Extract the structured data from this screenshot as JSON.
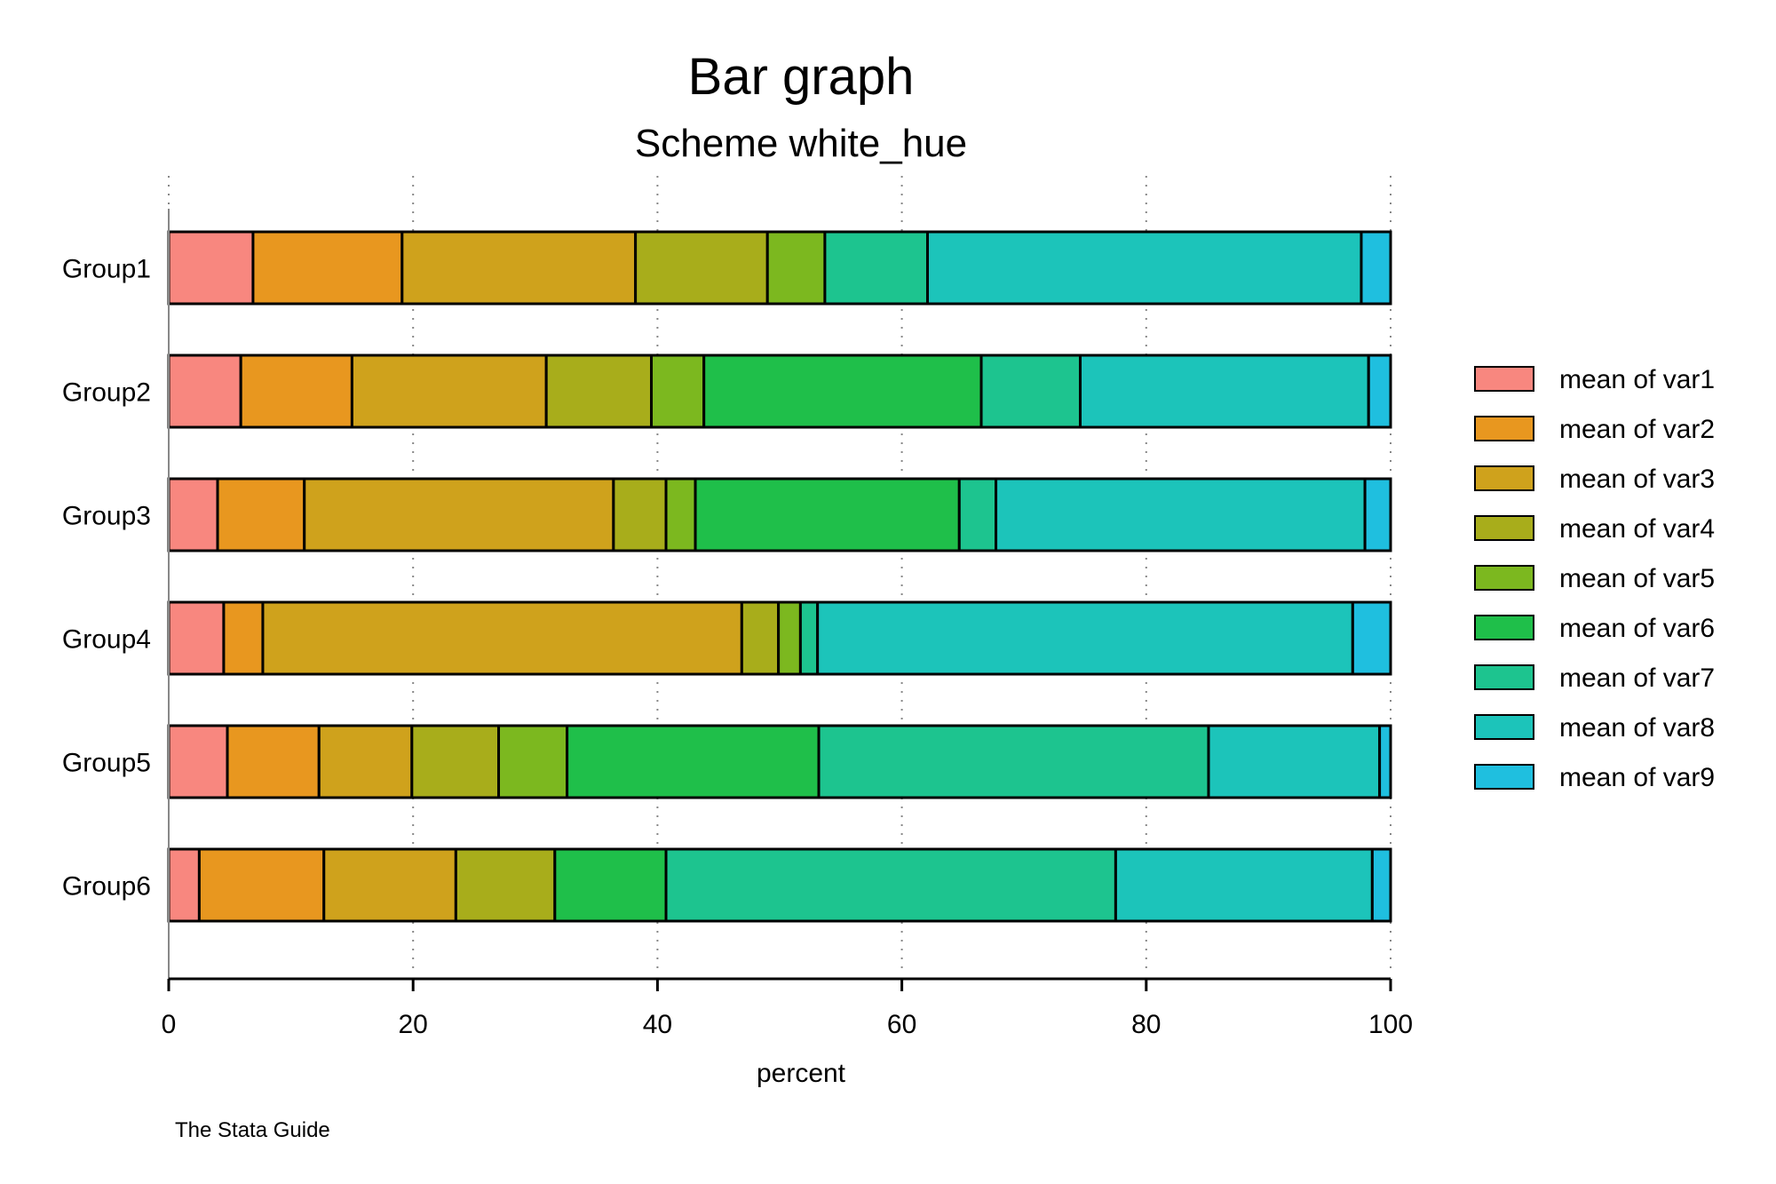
{
  "chart_data": {
    "type": "bar",
    "orientation": "horizontal",
    "stacked": true,
    "title": "Bar graph",
    "subtitle": "Scheme white_hue",
    "xlabel": "percent",
    "xlim": [
      0,
      100
    ],
    "xticks": [
      0,
      20,
      40,
      60,
      80,
      100
    ],
    "grid": true,
    "legend_position": "right",
    "note": "The Stata Guide",
    "categories": [
      "Group1",
      "Group2",
      "Group3",
      "Group4",
      "Group5",
      "Group6"
    ],
    "series": [
      {
        "name": "mean of var1",
        "color": "#F8877F",
        "values": [
          6.9,
          5.9,
          4.0,
          4.5,
          4.8,
          2.5
        ]
      },
      {
        "name": "mean of var2",
        "color": "#E8971F",
        "values": [
          12.2,
          9.1,
          7.1,
          3.2,
          7.5,
          10.2
        ]
      },
      {
        "name": "mean of var3",
        "color": "#CFA21C",
        "values": [
          19.1,
          15.9,
          25.3,
          39.2,
          7.6,
          10.8
        ]
      },
      {
        "name": "mean of var4",
        "color": "#A8AD1B",
        "values": [
          10.8,
          8.6,
          4.3,
          3.0,
          7.1,
          8.1
        ]
      },
      {
        "name": "mean of var5",
        "color": "#7CB81F",
        "values": [
          4.7,
          4.3,
          2.4,
          1.8,
          5.6,
          0.0
        ]
      },
      {
        "name": "mean of var6",
        "color": "#1FBF4A",
        "values": [
          0.0,
          22.7,
          21.6,
          0.0,
          20.6,
          9.1
        ]
      },
      {
        "name": "mean of var7",
        "color": "#1DC48F",
        "values": [
          8.4,
          8.1,
          3.0,
          1.4,
          31.9,
          36.8
        ]
      },
      {
        "name": "mean of var8",
        "color": "#1CC4BA",
        "values": [
          35.5,
          23.6,
          30.2,
          43.8,
          14.0,
          21.0
        ]
      },
      {
        "name": "mean of var9",
        "color": "#1FBFDF",
        "values": [
          2.4,
          1.8,
          2.1,
          3.1,
          0.9,
          1.5
        ]
      }
    ]
  }
}
